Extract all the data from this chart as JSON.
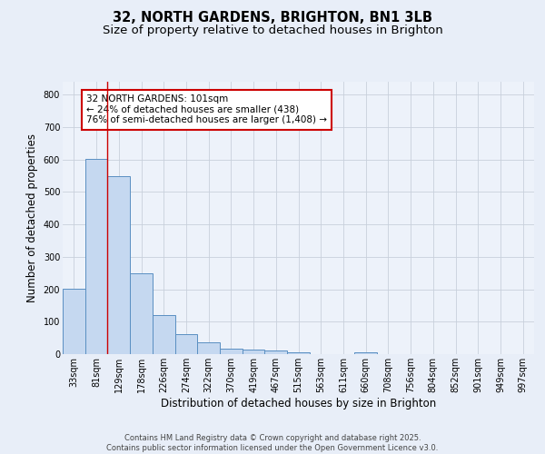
{
  "title_line1": "32, NORTH GARDENS, BRIGHTON, BN1 3LB",
  "title_line2": "Size of property relative to detached houses in Brighton",
  "xlabel": "Distribution of detached houses by size in Brighton",
  "ylabel": "Number of detached properties",
  "categories": [
    "33sqm",
    "81sqm",
    "129sqm",
    "178sqm",
    "226sqm",
    "274sqm",
    "322sqm",
    "370sqm",
    "419sqm",
    "467sqm",
    "515sqm",
    "563sqm",
    "611sqm",
    "660sqm",
    "708sqm",
    "756sqm",
    "804sqm",
    "852sqm",
    "901sqm",
    "949sqm",
    "997sqm"
  ],
  "bar_values": [
    203,
    603,
    548,
    249,
    121,
    62,
    37,
    18,
    15,
    10,
    5,
    0,
    0,
    7,
    0,
    0,
    0,
    0,
    0,
    0,
    0
  ],
  "bar_color": "#c5d8f0",
  "bar_edge_color": "#5a8fc2",
  "fig_bg_color": "#e8eef8",
  "ax_bg_color": "#edf2fa",
  "grid_color": "#c8d0dc",
  "vertical_line_color": "#cc0000",
  "vertical_line_x": 1.5,
  "annotation_text": "32 NORTH GARDENS: 101sqm\n← 24% of detached houses are smaller (438)\n76% of semi-detached houses are larger (1,408) →",
  "annotation_box_facecolor": "#ffffff",
  "annotation_box_edgecolor": "#cc0000",
  "ylim": [
    0,
    840
  ],
  "yticks": [
    0,
    100,
    200,
    300,
    400,
    500,
    600,
    700,
    800
  ],
  "footer_text": "Contains HM Land Registry data © Crown copyright and database right 2025.\nContains public sector information licensed under the Open Government Licence v3.0.",
  "title_fontsize": 10.5,
  "subtitle_fontsize": 9.5,
  "axis_label_fontsize": 8.5,
  "tick_fontsize": 7,
  "annotation_fontsize": 7.5,
  "footer_fontsize": 6
}
